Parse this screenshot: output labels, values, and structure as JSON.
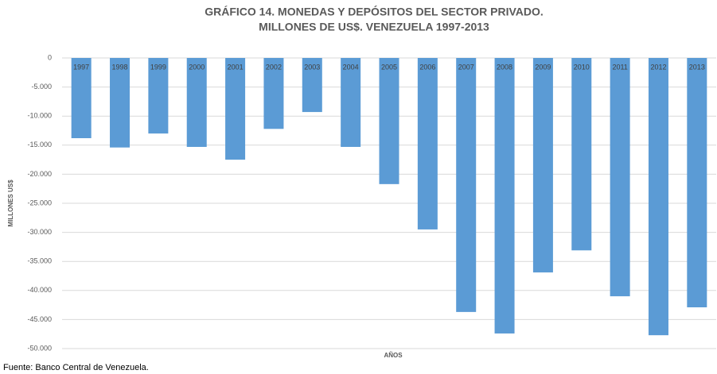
{
  "chart_data": {
    "type": "bar",
    "title": "GRÁFICO 14. MONEDAS Y DEPÓSITOS DEL SECTOR PRIVADO.",
    "subtitle": "MILLONES DE US$. VENEZUELA 1997-2013",
    "y_label": "MILLONES US$",
    "x_label": "AÑOS",
    "source": "Fuente: Banco Central de Venezuela.",
    "categories": [
      "1997",
      "1998",
      "1999",
      "2000",
      "2001",
      "2002",
      "2003",
      "2004",
      "2005",
      "2006",
      "2007",
      "2008",
      "2009",
      "2010",
      "2011",
      "2012",
      "2013"
    ],
    "values": [
      -13800,
      -15400,
      -13000,
      -15300,
      -17500,
      -12200,
      -9300,
      -15300,
      -21700,
      -29500,
      -43700,
      -47400,
      -36900,
      -33100,
      -41000,
      -47700,
      -42900
    ],
    "color": "#5b9bd5",
    "ylim": [
      -50000,
      0
    ],
    "yticks": [
      0,
      {
        "value": -5000,
        "label": "-5.000"
      },
      {
        "value": -10000,
        "label": "-10.000"
      },
      {
        "value": -15000,
        "label": "-15.000"
      },
      {
        "value": -20000,
        "label": "-20.000"
      },
      {
        "value": -25000,
        "label": "-25.000"
      },
      {
        "value": -30000,
        "label": "-30.000"
      },
      {
        "value": -35000,
        "label": "-35.000"
      },
      {
        "value": -40000,
        "label": "-40.000"
      },
      {
        "value": -45000,
        "label": "-45.000"
      },
      {
        "value": -50000,
        "label": "-50.000"
      }
    ],
    "grid": true
  }
}
